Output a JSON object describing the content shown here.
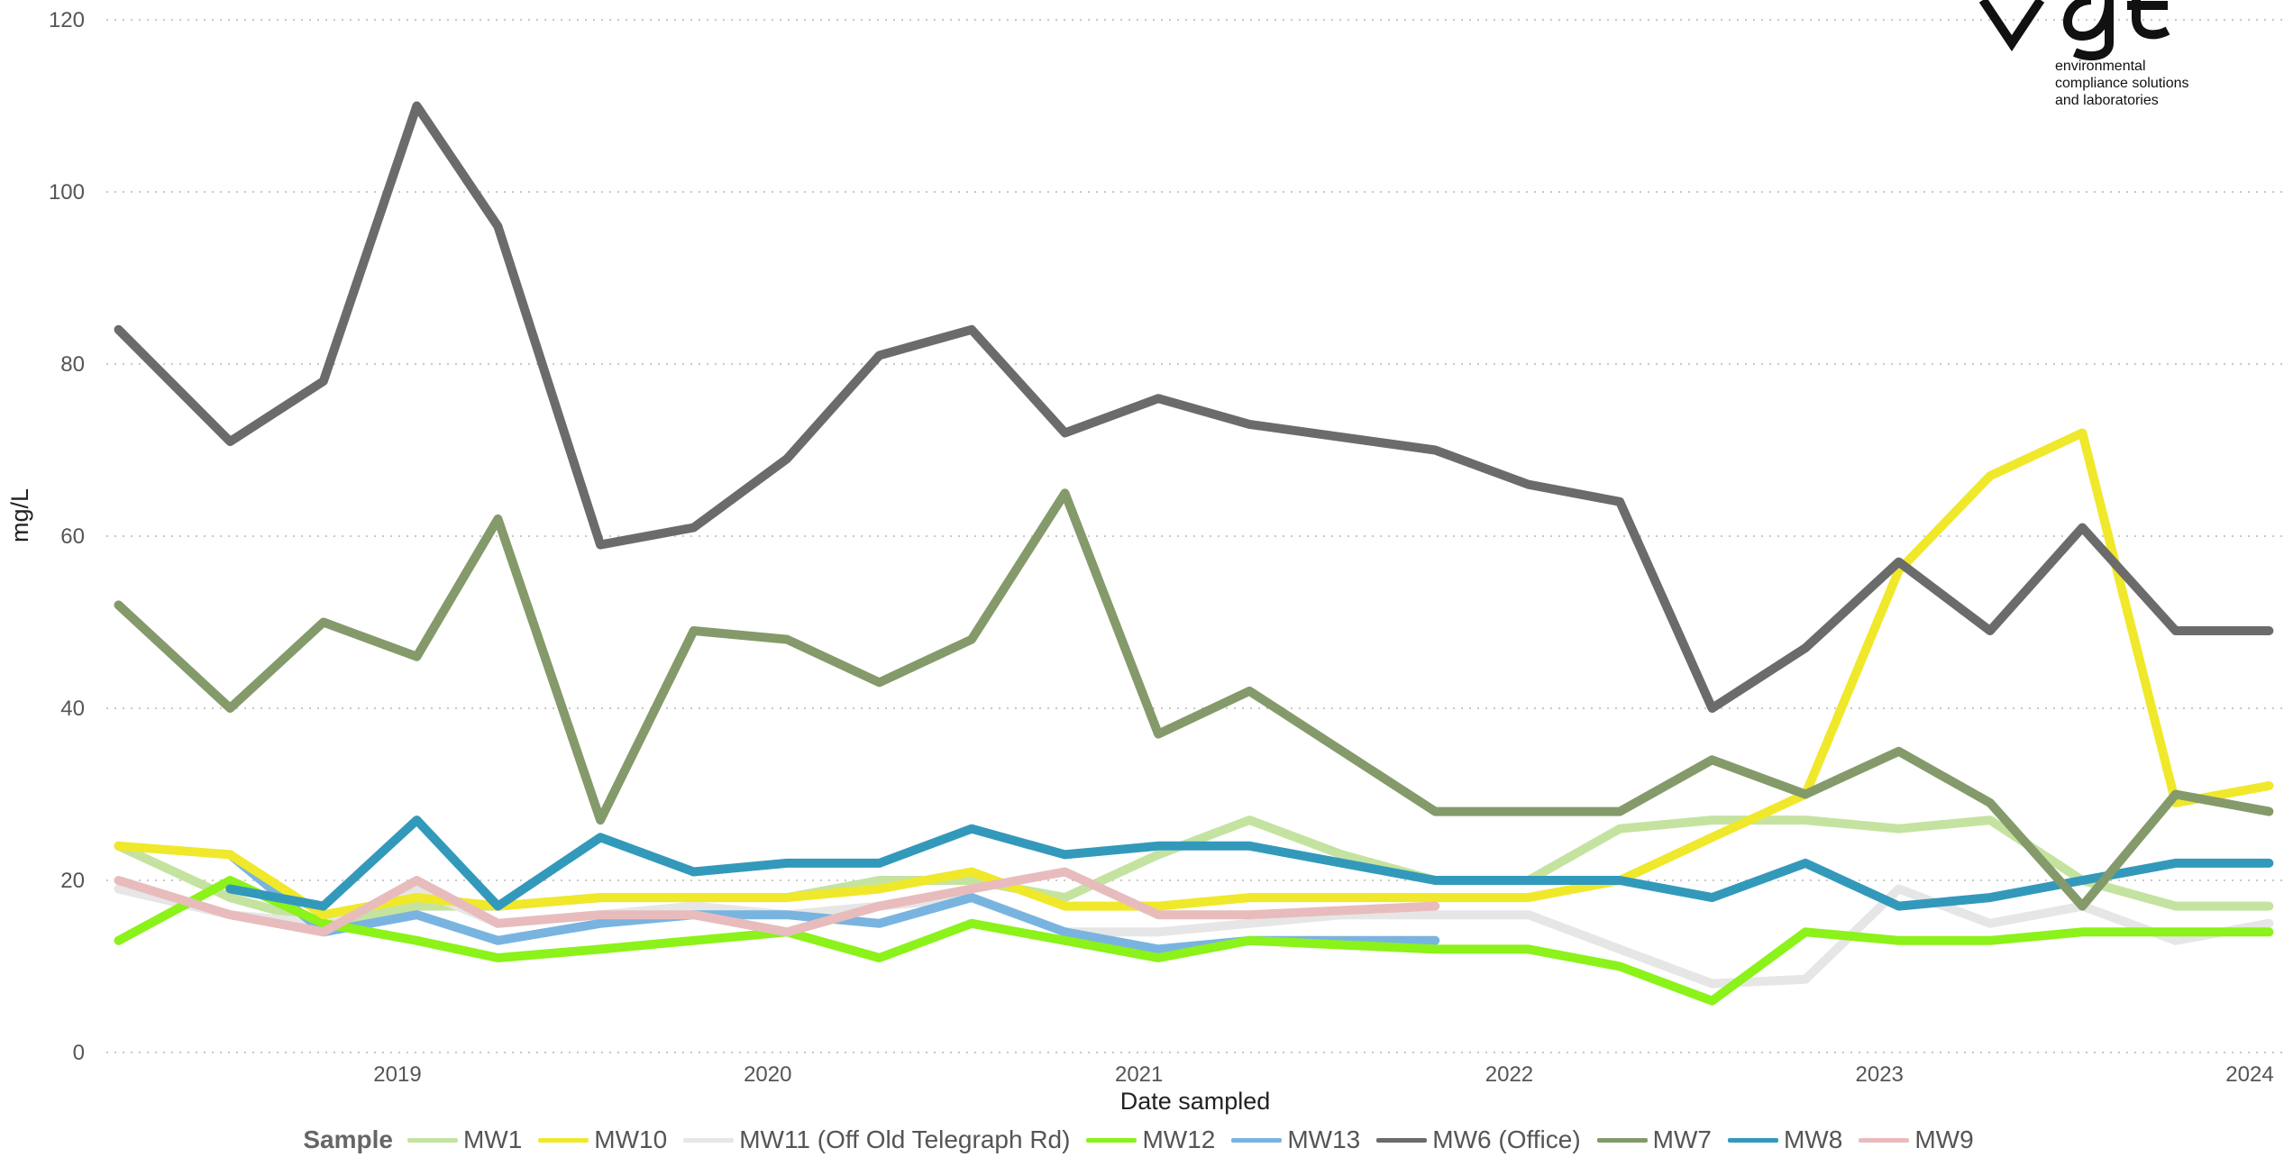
{
  "logo": {
    "mark": "vgt",
    "tagline": "environmental\ncompliance solutions\nand laboratories"
  },
  "legend": {
    "title": "Sample"
  },
  "chart_data": {
    "type": "line",
    "xlabel": "Date sampled",
    "ylabel": "mg/L",
    "ylim": [
      0,
      120
    ],
    "yticks": [
      0,
      20,
      40,
      60,
      80,
      100,
      120
    ],
    "xticks": [
      "2019",
      "2020",
      "2021",
      "2022",
      "2023",
      "2024"
    ],
    "grid": "horizontal dotted",
    "legend_position": "bottom",
    "series": [
      {
        "name": "MW1",
        "color": "#c5e3a0",
        "x": [
          "2018-04-01",
          "2018-07-20",
          "2018-10-20",
          "2019-01-20",
          "2019-04-10",
          "2019-07-20",
          "2019-10-20",
          "2020-01-20",
          "2020-04-20",
          "2020-07-20",
          "2020-10-20",
          "2021-01-20",
          "2021-04-20",
          "2021-07-20",
          "2021-10-20",
          "2022-01-20",
          "2022-04-20",
          "2022-07-20",
          "2022-10-20",
          "2023-01-20",
          "2023-04-20",
          "2023-07-20",
          "2023-10-20",
          "2024-01-20"
        ],
        "values": [
          24,
          18,
          15,
          17,
          17,
          18,
          18,
          18,
          20,
          20,
          18,
          23,
          27,
          23,
          20,
          20,
          26,
          27,
          27,
          26,
          27,
          20,
          17,
          17
        ]
      },
      {
        "name": "MW10",
        "color": "#f0e82a",
        "x": [
          "2018-04-01",
          "2018-07-20",
          "2018-10-20",
          "2019-01-20",
          "2019-04-10",
          "2019-07-20",
          "2019-10-20",
          "2020-01-20",
          "2020-04-20",
          "2020-07-20",
          "2020-10-20",
          "2021-01-20",
          "2021-04-20",
          "2021-07-20",
          "2021-10-20",
          "2022-01-20",
          "2022-04-20",
          "2022-07-20",
          "2022-10-20",
          "2023-01-20",
          "2023-04-20",
          "2023-07-20",
          "2023-10-20",
          "2024-01-20"
        ],
        "values": [
          24,
          23,
          16,
          18,
          17,
          18,
          18,
          18,
          19,
          21,
          17,
          17,
          18,
          18,
          18,
          18,
          20,
          25,
          30,
          56,
          67,
          72,
          29,
          31
        ]
      },
      {
        "name": "MW11 (Off Old Telegraph Rd)",
        "color": "#e6e6e6",
        "x": [
          "2018-04-01",
          "2018-07-20",
          "2018-10-20",
          "2019-01-20",
          "2019-04-10",
          "2019-07-20",
          "2019-10-20",
          "2020-01-20",
          "2020-04-20",
          "2020-07-20",
          "2020-10-20",
          "2021-01-20",
          "2021-04-20",
          "2021-07-20",
          "2021-10-20",
          "2022-01-20",
          "2022-04-20",
          "2022-07-20",
          "2022-10-20",
          "2023-01-20",
          "2023-04-20",
          "2023-07-20",
          "2023-10-20",
          "2024-01-20"
        ],
        "values": [
          19,
          16,
          15,
          19,
          15,
          16,
          17,
          16,
          17,
          18,
          14,
          14,
          15,
          16,
          16,
          16,
          12,
          8,
          8.5,
          19,
          15,
          17,
          13,
          15
        ]
      },
      {
        "name": "MW12",
        "color": "#8bf21a",
        "x": [
          "2018-04-01",
          "2018-07-20",
          "2018-10-20",
          "2019-01-20",
          "2019-04-10",
          "2019-07-20",
          "2019-10-20",
          "2020-01-20",
          "2020-04-20",
          "2020-07-20",
          "2020-10-20",
          "2021-01-20",
          "2021-04-20",
          "2021-07-20",
          "2021-10-20",
          "2022-01-20",
          "2022-04-20",
          "2022-07-20",
          "2022-10-20",
          "2023-01-20",
          "2023-04-20",
          "2023-07-20",
          "2023-10-20",
          "2024-01-20"
        ],
        "values": [
          13,
          20,
          15,
          13,
          11,
          12,
          13,
          14,
          11,
          15,
          13,
          11,
          13,
          12.5,
          12,
          12,
          10,
          6,
          14,
          13,
          13,
          14,
          14,
          14
        ]
      },
      {
        "name": "MW13",
        "color": "#79b4e0",
        "x": [
          "2018-07-20",
          "2018-10-20",
          "2019-01-20",
          "2019-04-10",
          "2019-07-20",
          "2019-10-20",
          "2020-01-20",
          "2020-04-20",
          "2020-07-20",
          "2020-10-20",
          "2021-01-20",
          "2021-04-20",
          "2021-07-20",
          "2021-10-20"
        ],
        "values": [
          23,
          14,
          16,
          13,
          15,
          16,
          16,
          15,
          18,
          14,
          12,
          13,
          13,
          13
        ]
      },
      {
        "name": "MW6 (Office)",
        "color": "#6b6b6b",
        "x": [
          "2018-04-01",
          "2018-07-20",
          "2018-10-20",
          "2019-01-20",
          "2019-04-10",
          "2019-07-20",
          "2019-10-20",
          "2020-01-20",
          "2020-04-20",
          "2020-07-20",
          "2020-10-20",
          "2021-01-20",
          "2021-04-20",
          "2021-10-20",
          "2022-01-20",
          "2022-04-20",
          "2022-07-20",
          "2022-10-20",
          "2023-01-20",
          "2023-04-20",
          "2023-07-20",
          "2023-10-20",
          "2024-01-20"
        ],
        "values": [
          84,
          71,
          78,
          110,
          96,
          59,
          61,
          69,
          81,
          84,
          72,
          76,
          73,
          70,
          66,
          64,
          40,
          47,
          57,
          49,
          61,
          49,
          49
        ]
      },
      {
        "name": "MW7",
        "color": "#849a6a",
        "x": [
          "2018-04-01",
          "2018-07-20",
          "2018-10-20",
          "2019-01-20",
          "2019-04-10",
          "2019-07-20",
          "2019-10-20",
          "2020-01-20",
          "2020-04-20",
          "2020-07-20",
          "2020-10-20",
          "2021-01-20",
          "2021-04-20",
          "2021-10-20",
          "2022-01-20",
          "2022-04-20",
          "2022-07-20",
          "2022-10-20",
          "2023-01-20",
          "2023-04-20",
          "2023-07-20",
          "2023-10-20",
          "2024-01-20"
        ],
        "values": [
          52,
          40,
          50,
          46,
          62,
          27,
          49,
          48,
          43,
          48,
          65,
          37,
          42,
          28,
          28,
          28,
          34,
          30,
          35,
          29,
          17,
          30,
          28
        ]
      },
      {
        "name": "MW8",
        "color": "#3399bb",
        "x": [
          "2018-07-20",
          "2018-10-20",
          "2019-01-20",
          "2019-04-10",
          "2019-07-20",
          "2019-10-20",
          "2020-01-20",
          "2020-04-20",
          "2020-07-20",
          "2020-10-20",
          "2021-01-20",
          "2021-04-20",
          "2021-10-20",
          "2022-01-20",
          "2022-04-20",
          "2022-07-20",
          "2022-10-20",
          "2023-01-20",
          "2023-04-20",
          "2023-07-20",
          "2023-10-20",
          "2024-01-20"
        ],
        "values": [
          19,
          17,
          27,
          17,
          25,
          21,
          22,
          22,
          26,
          23,
          24,
          24,
          20,
          20,
          20,
          18,
          22,
          17,
          18,
          20,
          22,
          22
        ]
      },
      {
        "name": "MW9",
        "color": "#e8bcbc",
        "x": [
          "2018-04-01",
          "2018-07-20",
          "2018-10-20",
          "2019-01-20",
          "2019-04-10",
          "2019-07-20",
          "2019-10-20",
          "2020-01-20",
          "2020-04-20",
          "2020-07-20",
          "2020-10-20",
          "2021-01-20",
          "2021-04-20",
          "2021-10-20"
        ],
        "values": [
          20,
          16,
          14,
          20,
          15,
          16,
          16,
          14,
          17,
          19,
          21,
          16,
          16,
          17
        ]
      }
    ]
  }
}
